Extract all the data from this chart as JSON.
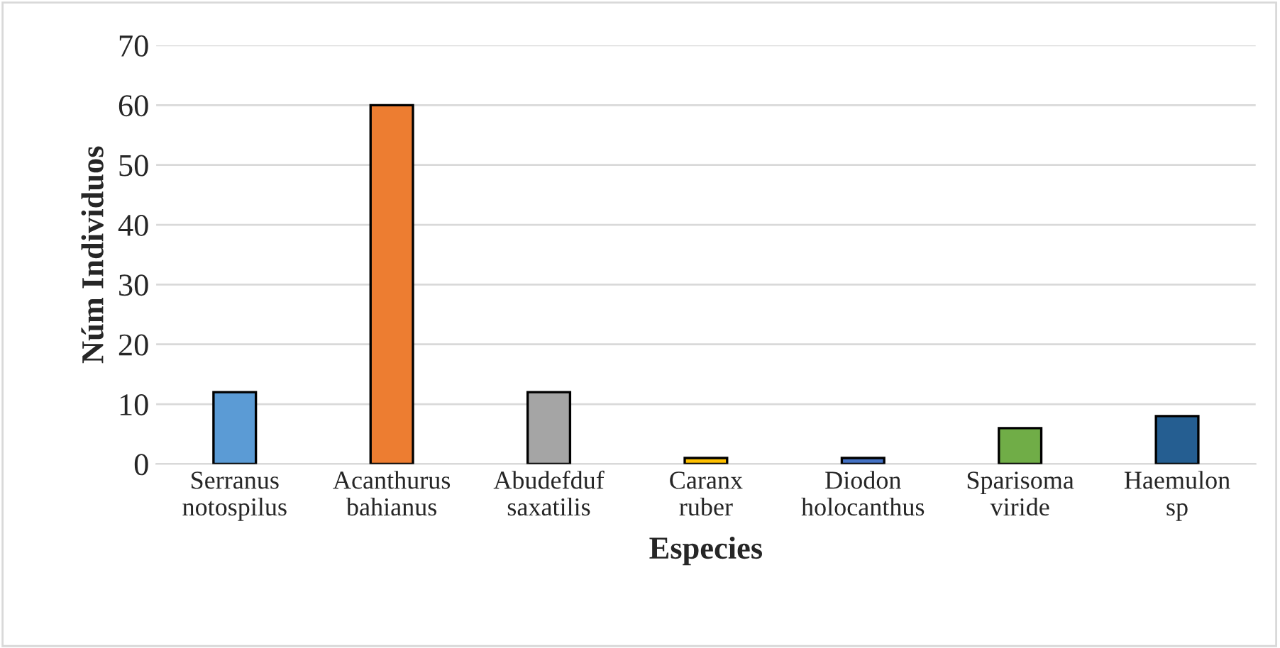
{
  "chart_data": {
    "type": "bar",
    "xlabel": "Especies",
    "ylabel": "Núm Individuos",
    "categories": [
      "Serranus\nnotospilus",
      "Acanthurus\nbahianus",
      "Abudefduf\nsaxatilis",
      "Caranx\nruber",
      "Diodon\nholocanthus",
      "Sparisoma\nviride",
      "Haemulon\nsp"
    ],
    "values": [
      12,
      60,
      12,
      1,
      1,
      6,
      8
    ],
    "colors": [
      "#5b9bd5",
      "#ed7d31",
      "#a5a5a5",
      "#ffc000",
      "#4472c4",
      "#70ad47",
      "#255e91"
    ],
    "ylim": [
      0,
      70
    ],
    "yticks": [
      0,
      10,
      20,
      30,
      40,
      50,
      60,
      70
    ],
    "grid": "y"
  }
}
